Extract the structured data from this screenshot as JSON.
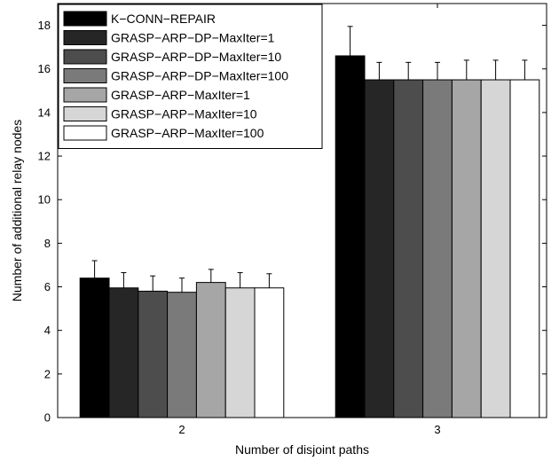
{
  "chart_data": {
    "type": "bar",
    "xlabel": "Number of disjoint paths",
    "ylabel": "Number of additional relay nodes",
    "categories": [
      "2",
      "3"
    ],
    "ylim": [
      0,
      19
    ],
    "yticks": [
      0,
      2,
      4,
      6,
      8,
      10,
      12,
      14,
      16,
      18
    ],
    "grid": false,
    "legend_position": "top-left",
    "series": [
      {
        "name": "K−CONN−REPAIR",
        "color": "#000000",
        "values": [
          6.4,
          16.6
        ],
        "errors": [
          0.8,
          1.35
        ]
      },
      {
        "name": "GRASP−ARP−DP−MaxIter=1",
        "color": "#262626",
        "values": [
          5.95,
          15.5
        ],
        "errors": [
          0.7,
          0.8
        ]
      },
      {
        "name": "GRASP−ARP−DP−MaxIter=10",
        "color": "#4d4d4d",
        "values": [
          5.8,
          15.5
        ],
        "errors": [
          0.7,
          0.8
        ]
      },
      {
        "name": "GRASP−ARP−DP−MaxIter=100",
        "color": "#7a7a7a",
        "values": [
          5.75,
          15.5
        ],
        "errors": [
          0.65,
          0.8
        ]
      },
      {
        "name": "GRASP−ARP−MaxIter=1",
        "color": "#a6a6a6",
        "values": [
          6.2,
          15.5
        ],
        "errors": [
          0.6,
          0.9
        ]
      },
      {
        "name": "GRASP−ARP−MaxIter=10",
        "color": "#d6d6d6",
        "values": [
          5.95,
          15.5
        ],
        "errors": [
          0.7,
          0.9
        ]
      },
      {
        "name": "GRASP−ARP−MaxIter=100",
        "color": "#ffffff",
        "values": [
          5.95,
          15.5
        ],
        "errors": [
          0.65,
          0.9
        ]
      }
    ]
  }
}
